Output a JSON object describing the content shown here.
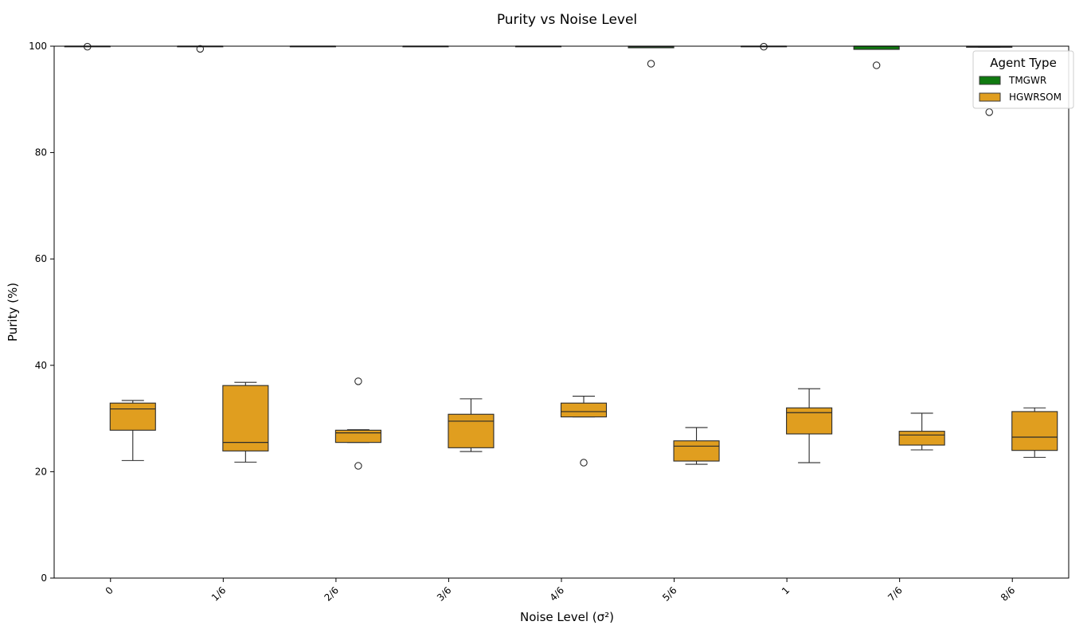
{
  "chart_data": {
    "type": "box",
    "title": "Purity vs Noise Level",
    "xlabel": "Noise Level (σ²)",
    "ylabel": "Purity (%)",
    "ylim": [
      0,
      100
    ],
    "yticks": [
      0,
      20,
      40,
      60,
      80,
      100
    ],
    "categories": [
      "0",
      "1/6",
      "2/6",
      "3/6",
      "4/6",
      "5/6",
      "1",
      "7/6",
      "8/6"
    ],
    "grid": false,
    "legend": {
      "title": "Agent Type",
      "position": "top-right"
    },
    "series": [
      {
        "name": "TMGWR",
        "color": "#107a10",
        "boxes": [
          {
            "whisker_low": 100,
            "q1": 100,
            "median": 100,
            "q3": 100,
            "whisker_high": 100,
            "outliers": [
              99.9
            ]
          },
          {
            "whisker_low": 100,
            "q1": 100,
            "median": 100,
            "q3": 100,
            "whisker_high": 100,
            "outliers": [
              99.5
            ]
          },
          {
            "whisker_low": 100,
            "q1": 100,
            "median": 100,
            "q3": 100,
            "whisker_high": 100,
            "outliers": []
          },
          {
            "whisker_low": 100,
            "q1": 100,
            "median": 100,
            "q3": 100,
            "whisker_high": 100,
            "outliers": []
          },
          {
            "whisker_low": 100,
            "q1": 100,
            "median": 100,
            "q3": 100,
            "whisker_high": 100,
            "outliers": []
          },
          {
            "whisker_low": 99.7,
            "q1": 99.7,
            "median": 99.9,
            "q3": 100,
            "whisker_high": 100,
            "outliers": [
              96.7
            ]
          },
          {
            "whisker_low": 100,
            "q1": 100,
            "median": 100,
            "q3": 100,
            "whisker_high": 100,
            "outliers": [
              99.9
            ]
          },
          {
            "whisker_low": 99.4,
            "q1": 99.4,
            "median": 100,
            "q3": 100,
            "whisker_high": 100,
            "outliers": [
              96.4
            ]
          },
          {
            "whisker_low": 99.8,
            "q1": 99.8,
            "median": 99.9,
            "q3": 100,
            "whisker_high": 100,
            "outliers": [
              87.6
            ]
          }
        ]
      },
      {
        "name": "HGWRSOM",
        "color": "#e09e1f",
        "boxes": [
          {
            "whisker_low": 22.1,
            "q1": 27.8,
            "median": 31.8,
            "q3": 32.9,
            "whisker_high": 33.4,
            "outliers": []
          },
          {
            "whisker_low": 21.8,
            "q1": 23.9,
            "median": 25.5,
            "q3": 36.2,
            "whisker_high": 36.8,
            "outliers": []
          },
          {
            "whisker_low": 25.5,
            "q1": 25.5,
            "median": 27.3,
            "q3": 27.8,
            "whisker_high": 27.9,
            "outliers": [
              21.1,
              37.0
            ]
          },
          {
            "whisker_low": 23.8,
            "q1": 24.5,
            "median": 29.5,
            "q3": 30.8,
            "whisker_high": 33.7,
            "outliers": []
          },
          {
            "whisker_low": 30.3,
            "q1": 30.3,
            "median": 31.3,
            "q3": 32.9,
            "whisker_high": 34.2,
            "outliers": [
              21.7
            ]
          },
          {
            "whisker_low": 21.4,
            "q1": 22.0,
            "median": 24.8,
            "q3": 25.8,
            "whisker_high": 28.3,
            "outliers": []
          },
          {
            "whisker_low": 21.7,
            "q1": 27.1,
            "median": 31.1,
            "q3": 32.0,
            "whisker_high": 35.6,
            "outliers": []
          },
          {
            "whisker_low": 24.1,
            "q1": 25.0,
            "median": 26.9,
            "q3": 27.6,
            "whisker_high": 31.0,
            "outliers": []
          },
          {
            "whisker_low": 22.7,
            "q1": 24.0,
            "median": 26.5,
            "q3": 31.3,
            "whisker_high": 32.0,
            "outliers": []
          }
        ]
      }
    ]
  }
}
